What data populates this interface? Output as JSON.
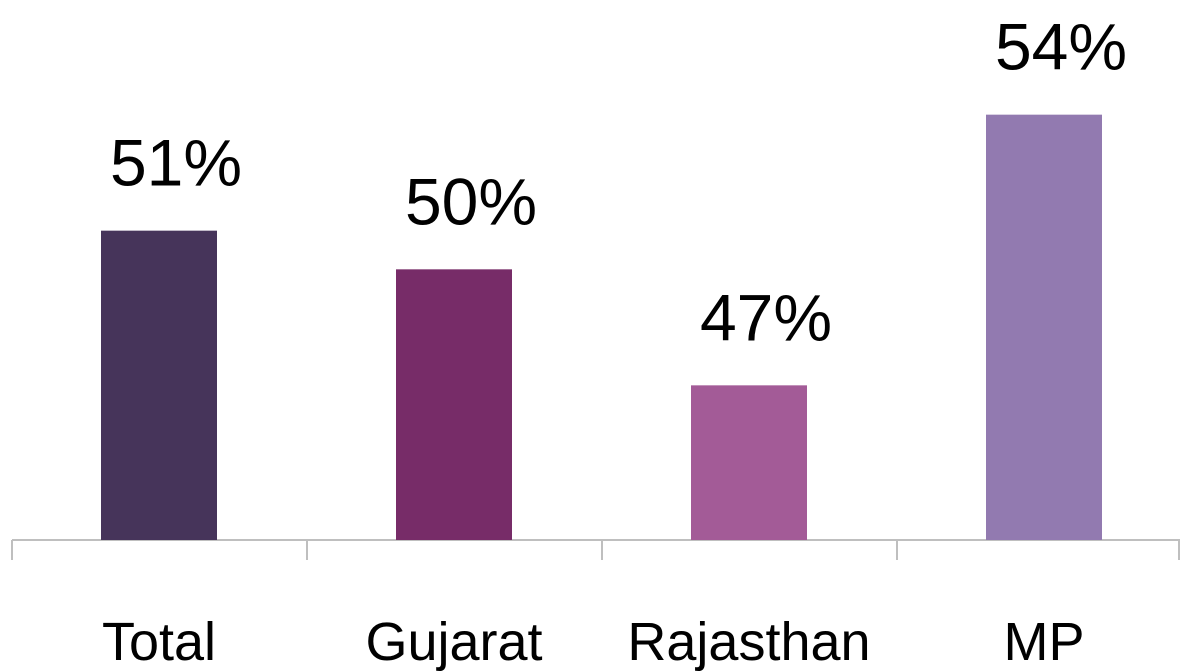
{
  "chart_data": {
    "type": "bar",
    "categories": [
      "Total",
      "Gujarat",
      "Rajasthan",
      "MP"
    ],
    "values": [
      51,
      50,
      47,
      54
    ],
    "value_labels": [
      "51%",
      "50%",
      "47%",
      "54%"
    ],
    "colors": [
      "#46345a",
      "#772c68",
      "#a35b97",
      "#927ab0"
    ],
    "ylim": [
      43,
      55
    ]
  }
}
